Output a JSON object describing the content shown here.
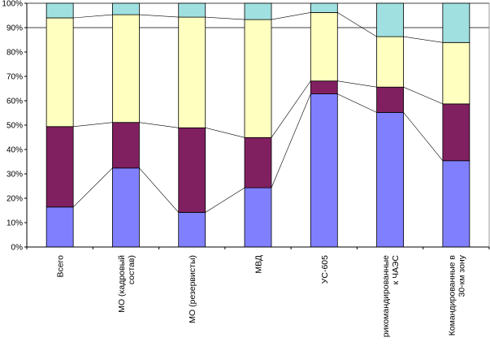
{
  "chart_data": {
    "type": "bar",
    "stacked": true,
    "percent_stacked": true,
    "title": "",
    "xlabel": "",
    "ylabel": "",
    "ylim": [
      0,
      100
    ],
    "y_ticks": [
      "0%",
      "10%",
      "20%",
      "30%",
      "40%",
      "50%",
      "60%",
      "70%",
      "80%",
      "90%",
      "100%"
    ],
    "grid": "horizontal lines at 90% and 100%",
    "series_lines": true,
    "legend": "none",
    "categories": [
      [
        "Всего"
      ],
      [
        "МО (кадровый",
        "состав)"
      ],
      [
        "МО (резервисты)"
      ],
      [
        "МВД"
      ],
      [
        "УС-605"
      ],
      [
        "рикомандированные",
        "к ЧАЭС"
      ],
      [
        "Командированные в",
        "30-км зону"
      ]
    ],
    "series": [
      {
        "name": "series-1",
        "color": "#8080ff",
        "values": [
          16.4,
          32.4,
          14.2,
          24.3,
          62.8,
          55.2,
          35.4
        ]
      },
      {
        "name": "series-2",
        "color": "#802060",
        "values": [
          33.0,
          18.7,
          34.7,
          20.6,
          5.3,
          10.4,
          23.3
        ]
      },
      {
        "name": "series-3",
        "color": "#ffffc0",
        "values": [
          44.6,
          44.2,
          45.4,
          48.4,
          28.1,
          20.7,
          25.2
        ]
      },
      {
        "name": "series-4",
        "color": "#a0e0e0",
        "values": [
          6.0,
          4.7,
          5.7,
          6.7,
          3.8,
          13.7,
          16.1
        ]
      }
    ]
  }
}
